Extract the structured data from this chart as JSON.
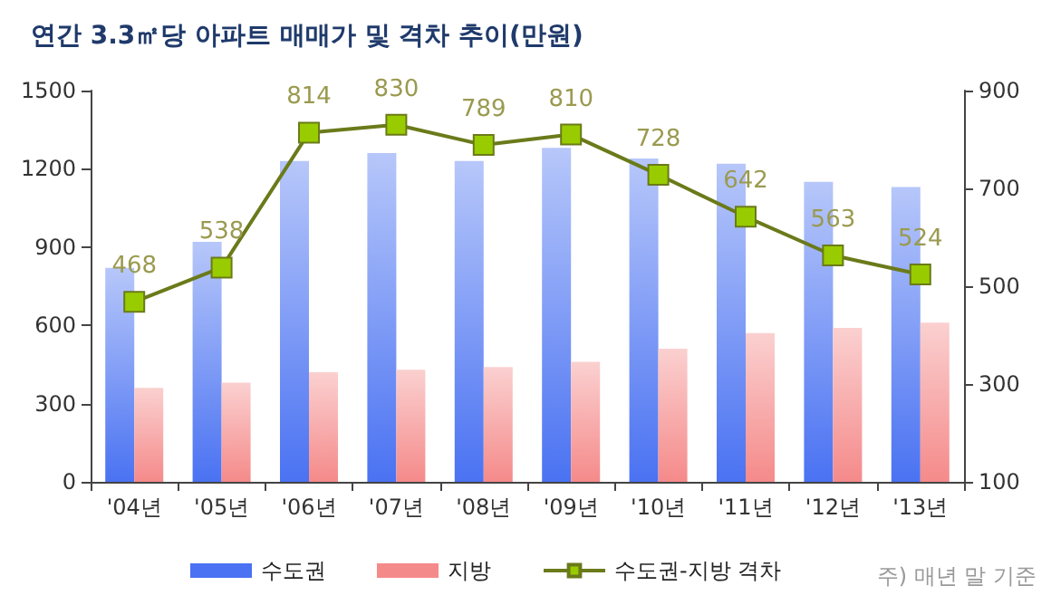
{
  "chart_data": {
    "type": "bar",
    "title": "연간 3.3㎡당 아파트 매매가 및 격차 추이(만원)",
    "categories": [
      "'04년",
      "'05년",
      "'06년",
      "'07년",
      "'08년",
      "'09년",
      "'10년",
      "'11년",
      "'12년",
      "'13년"
    ],
    "series": [
      {
        "name": "수도권",
        "color": "#4a72f2",
        "values": [
          820,
          920,
          1230,
          1260,
          1230,
          1280,
          1240,
          1220,
          1150,
          1130
        ]
      },
      {
        "name": "지방",
        "color": "#f58a8a",
        "values": [
          360,
          380,
          420,
          430,
          440,
          460,
          510,
          570,
          590,
          610
        ]
      },
      {
        "name": "수도권-지방 격차",
        "type": "line",
        "axis": "y2",
        "color": "#6b7a1a",
        "marker": "square",
        "values": [
          468,
          538,
          814,
          830,
          789,
          810,
          728,
          642,
          563,
          524
        ],
        "data_labels": true
      }
    ],
    "ylim": [
      0,
      1500
    ],
    "yticks": [
      0,
      300,
      600,
      900,
      1200,
      1500
    ],
    "y2lim": [
      100,
      900
    ],
    "y2ticks": [
      100,
      300,
      500,
      700,
      900
    ],
    "grid": false,
    "legend": "bottom",
    "annotations": [
      "주) 매년 말 기준"
    ]
  }
}
